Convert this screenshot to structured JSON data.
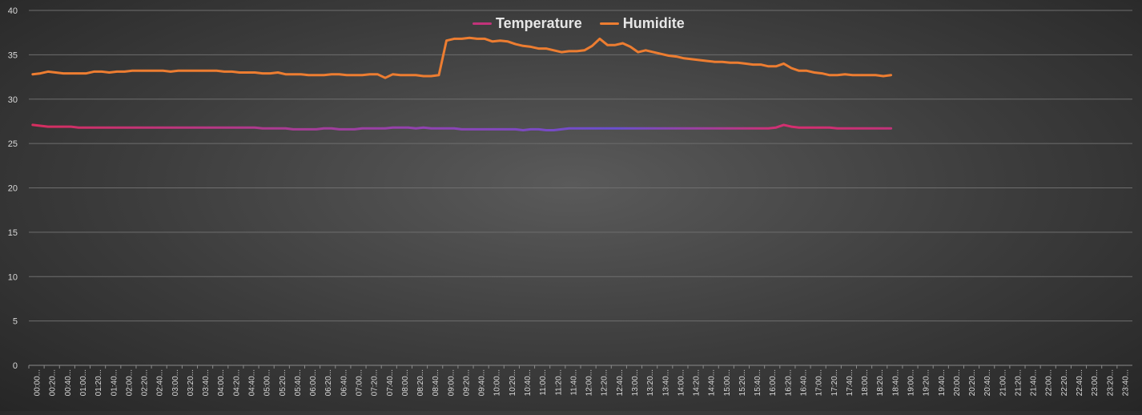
{
  "chart_data": {
    "type": "line",
    "title": "",
    "xlabel": "",
    "ylabel": "",
    "ylim": [
      0,
      40
    ],
    "yticks": [
      0,
      5,
      10,
      15,
      20,
      25,
      30,
      35,
      40
    ],
    "grid": true,
    "legend_position": "top-center",
    "x_tick_labels": [
      "00:00...",
      "00:20...",
      "00:40...",
      "01:00...",
      "01:20...",
      "01:40...",
      "02:00...",
      "02:20...",
      "02:40...",
      "03:00...",
      "03:20...",
      "03:40...",
      "04:00...",
      "04:20...",
      "04:40...",
      "05:00...",
      "05:20...",
      "05:40...",
      "06:00...",
      "06:20...",
      "06:40...",
      "07:00...",
      "07:20...",
      "07:40...",
      "08:00...",
      "08:20...",
      "08:40...",
      "09:00...",
      "09:20...",
      "09:40...",
      "10:00...",
      "10:20...",
      "10:40...",
      "11:00...",
      "11:20...",
      "11:40...",
      "12:00...",
      "12:20...",
      "12:40...",
      "13:00...",
      "13:20...",
      "13:40...",
      "14:00...",
      "14:20...",
      "14:40...",
      "15:00...",
      "15:20...",
      "15:40...",
      "16:00...",
      "16:20...",
      "16:40...",
      "17:00...",
      "17:20...",
      "17:40...",
      "18:00...",
      "18:20...",
      "18:40...",
      "19:00...",
      "19:20...",
      "19:40...",
      "20:00...",
      "20:20...",
      "20:40...",
      "21:00...",
      "21:20...",
      "21:40...",
      "22:00...",
      "22:20...",
      "22:40...",
      "23:00...",
      "23:20...",
      "23:40..."
    ],
    "series": [
      {
        "name": "Temperature",
        "color": "#c2337a",
        "values": [
          27.1,
          27.0,
          26.9,
          26.9,
          26.9,
          26.9,
          26.8,
          26.8,
          26.8,
          26.8,
          26.8,
          26.8,
          26.8,
          26.8,
          26.8,
          26.8,
          26.8,
          26.8,
          26.8,
          26.8,
          26.8,
          26.8,
          26.8,
          26.8,
          26.8,
          26.8,
          26.8,
          26.8,
          26.8,
          26.8,
          26.7,
          26.7,
          26.7,
          26.7,
          26.6,
          26.6,
          26.6,
          26.6,
          26.7,
          26.7,
          26.6,
          26.6,
          26.6,
          26.7,
          26.7,
          26.7,
          26.7,
          26.8,
          26.8,
          26.8,
          26.7,
          26.8,
          26.7,
          26.7,
          26.7,
          26.7,
          26.6,
          26.6,
          26.6,
          26.6,
          26.6,
          26.6,
          26.6,
          26.6,
          26.5,
          26.6,
          26.6,
          26.5,
          26.5,
          26.6,
          26.7,
          26.7,
          26.7,
          26.7,
          26.7,
          26.7,
          26.7,
          26.7,
          26.7,
          26.7,
          26.7,
          26.7,
          26.7,
          26.7,
          26.7,
          26.7,
          26.7,
          26.7,
          26.7,
          26.7,
          26.7,
          26.7,
          26.7,
          26.7,
          26.7,
          26.7,
          26.7,
          26.8,
          27.1,
          26.9,
          26.8,
          26.8,
          26.8,
          26.8,
          26.8,
          26.7,
          26.7,
          26.7,
          26.7,
          26.7,
          26.7,
          26.7,
          26.7
        ]
      },
      {
        "name": "Humidite",
        "color": "#ed7d31",
        "values": [
          32.8,
          32.9,
          33.1,
          33.0,
          32.9,
          32.9,
          32.9,
          32.9,
          33.1,
          33.1,
          33.0,
          33.1,
          33.1,
          33.2,
          33.2,
          33.2,
          33.2,
          33.2,
          33.1,
          33.2,
          33.2,
          33.2,
          33.2,
          33.2,
          33.2,
          33.1,
          33.1,
          33.0,
          33.0,
          33.0,
          32.9,
          32.9,
          33.0,
          32.8,
          32.8,
          32.8,
          32.7,
          32.7,
          32.7,
          32.8,
          32.8,
          32.7,
          32.7,
          32.7,
          32.8,
          32.8,
          32.4,
          32.8,
          32.7,
          32.7,
          32.7,
          32.6,
          32.6,
          32.7,
          36.6,
          36.8,
          36.8,
          36.9,
          36.8,
          36.8,
          36.5,
          36.6,
          36.5,
          36.2,
          36.0,
          35.9,
          35.7,
          35.7,
          35.5,
          35.3,
          35.4,
          35.4,
          35.5,
          36.0,
          36.8,
          36.1,
          36.1,
          36.3,
          35.9,
          35.3,
          35.5,
          35.3,
          35.1,
          34.9,
          34.8,
          34.6,
          34.5,
          34.4,
          34.3,
          34.2,
          34.2,
          34.1,
          34.1,
          34.0,
          33.9,
          33.9,
          33.7,
          33.7,
          34.0,
          33.5,
          33.2,
          33.2,
          33.0,
          32.9,
          32.7,
          32.7,
          32.8,
          32.7,
          32.7,
          32.7,
          32.7,
          32.6,
          32.7
        ]
      }
    ]
  }
}
